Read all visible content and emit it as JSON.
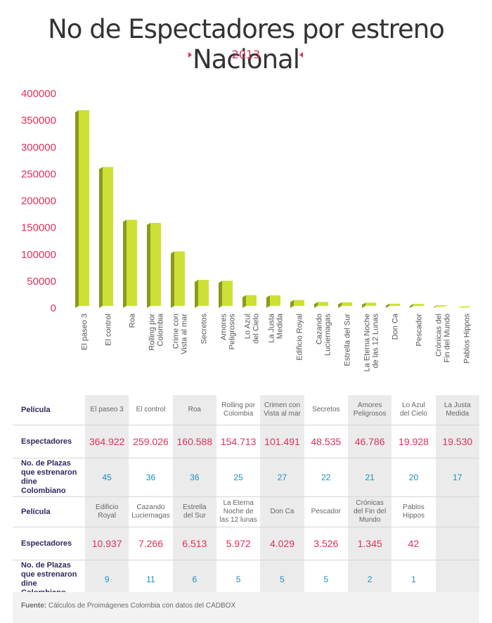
{
  "title": "No de Espectadores por estreno Nacional",
  "year": "2013",
  "colors": {
    "bar_front": "#cde036",
    "bar_side": "#8a9a1e",
    "bar_top": "#e6f07a",
    "accent": "#e0305a",
    "plazas": "#1a8fc0",
    "header": "#2e2a5c"
  },
  "chart_data": {
    "type": "bar",
    "title": "No de Espectadores por estreno Nacional",
    "subtitle": "2013",
    "categories": [
      "El paseo 3",
      "El control",
      "Roa",
      "Rolling por Colombia",
      "Crime con Vista al mar",
      "Secretos",
      "Amores Peligrosos",
      "Lo Azul del Cielo",
      "La Justa Medida",
      "Edificio Royal",
      "Cazando Luciernagas",
      "Estrella del Sur",
      "La Eterna Noche de las 12 Lunas",
      "Don Ca",
      "Pescador",
      "Crónicas del Fin del Mundo",
      "Pablos Hippos"
    ],
    "tick_lines": [
      [
        "El paseo 3"
      ],
      [
        "El control"
      ],
      [
        "Roa"
      ],
      [
        "Rolling por",
        "Colombia"
      ],
      [
        "Crime con",
        "Vista al mar"
      ],
      [
        "Secretos"
      ],
      [
        "Amores",
        "Peligrosos"
      ],
      [
        "Lo Azul",
        "del Cielo"
      ],
      [
        "La Justa",
        "Medida"
      ],
      [
        "Edificio Royal"
      ],
      [
        "Cazando",
        "Luciernagas"
      ],
      [
        "Estrella del Sur"
      ],
      [
        "La Eterna Noche",
        "de las 12 Lunas"
      ],
      [
        "Don Ca"
      ],
      [
        "Pescador"
      ],
      [
        "Crónicas del",
        "Fin del Mundo"
      ],
      [
        "Pablos Hippos"
      ]
    ],
    "values": [
      364922,
      259026,
      160588,
      154713,
      101491,
      48535,
      46786,
      19928,
      19530,
      10937,
      7266,
      6513,
      5972,
      4029,
      3526,
      1345,
      42
    ],
    "ylim": [
      0,
      400000
    ],
    "yticks": [
      "0",
      "50000",
      "100000",
      "150000",
      "200000",
      "250000",
      "300000",
      "350000",
      "400000"
    ],
    "grid": false,
    "legend": "none"
  },
  "table": {
    "row_labels": {
      "pelicula": "Película",
      "espectadores": "Espectadores",
      "plazas": [
        "No. de Plazas",
        "que estrenaron",
        "dine Colombiano"
      ]
    },
    "block1": {
      "films": [
        [
          "El paseo 3"
        ],
        [
          "El control"
        ],
        [
          "Roa"
        ],
        [
          "Rolling por",
          "Colombia"
        ],
        [
          "Crimen con",
          "Vista al mar"
        ],
        [
          "Secretos"
        ],
        [
          "Amores",
          "Peligrosos"
        ],
        [
          "Lo Azul",
          "del Cielo"
        ],
        [
          "La Justa",
          "Medida"
        ]
      ],
      "espectadores": [
        "364.922",
        "259.026",
        "160.588",
        "154.713",
        "101.491",
        "48.535",
        "46.786",
        "19.928",
        "19.530"
      ],
      "plazas": [
        "45",
        "36",
        "36",
        "25",
        "27",
        "22",
        "21",
        "20",
        "17"
      ]
    },
    "block2": {
      "films": [
        [
          "Edificio",
          "Royal"
        ],
        [
          "Cazando",
          "Luciernagas"
        ],
        [
          "Estrella",
          "del Sur"
        ],
        [
          "La Eterna",
          "Noche de",
          "las 12 lunas"
        ],
        [
          "Don Ca"
        ],
        [
          "Pescador"
        ],
        [
          "Crónicas",
          "del Fin del",
          "Mundo"
        ],
        [
          "Pablos",
          "Hippos"
        ],
        [
          ""
        ]
      ],
      "espectadores": [
        "10.937",
        "7.266",
        "6.513",
        "5.972",
        "4.029",
        "3.526",
        "1.345",
        "42",
        ""
      ],
      "plazas": [
        "9",
        "11",
        "6",
        "5",
        "5",
        "5",
        "2",
        "1",
        ""
      ]
    }
  },
  "footnote": {
    "label": "Fuente:",
    "text": " Cálculos de Proimágenes Colombia con datos del CADBOX"
  }
}
